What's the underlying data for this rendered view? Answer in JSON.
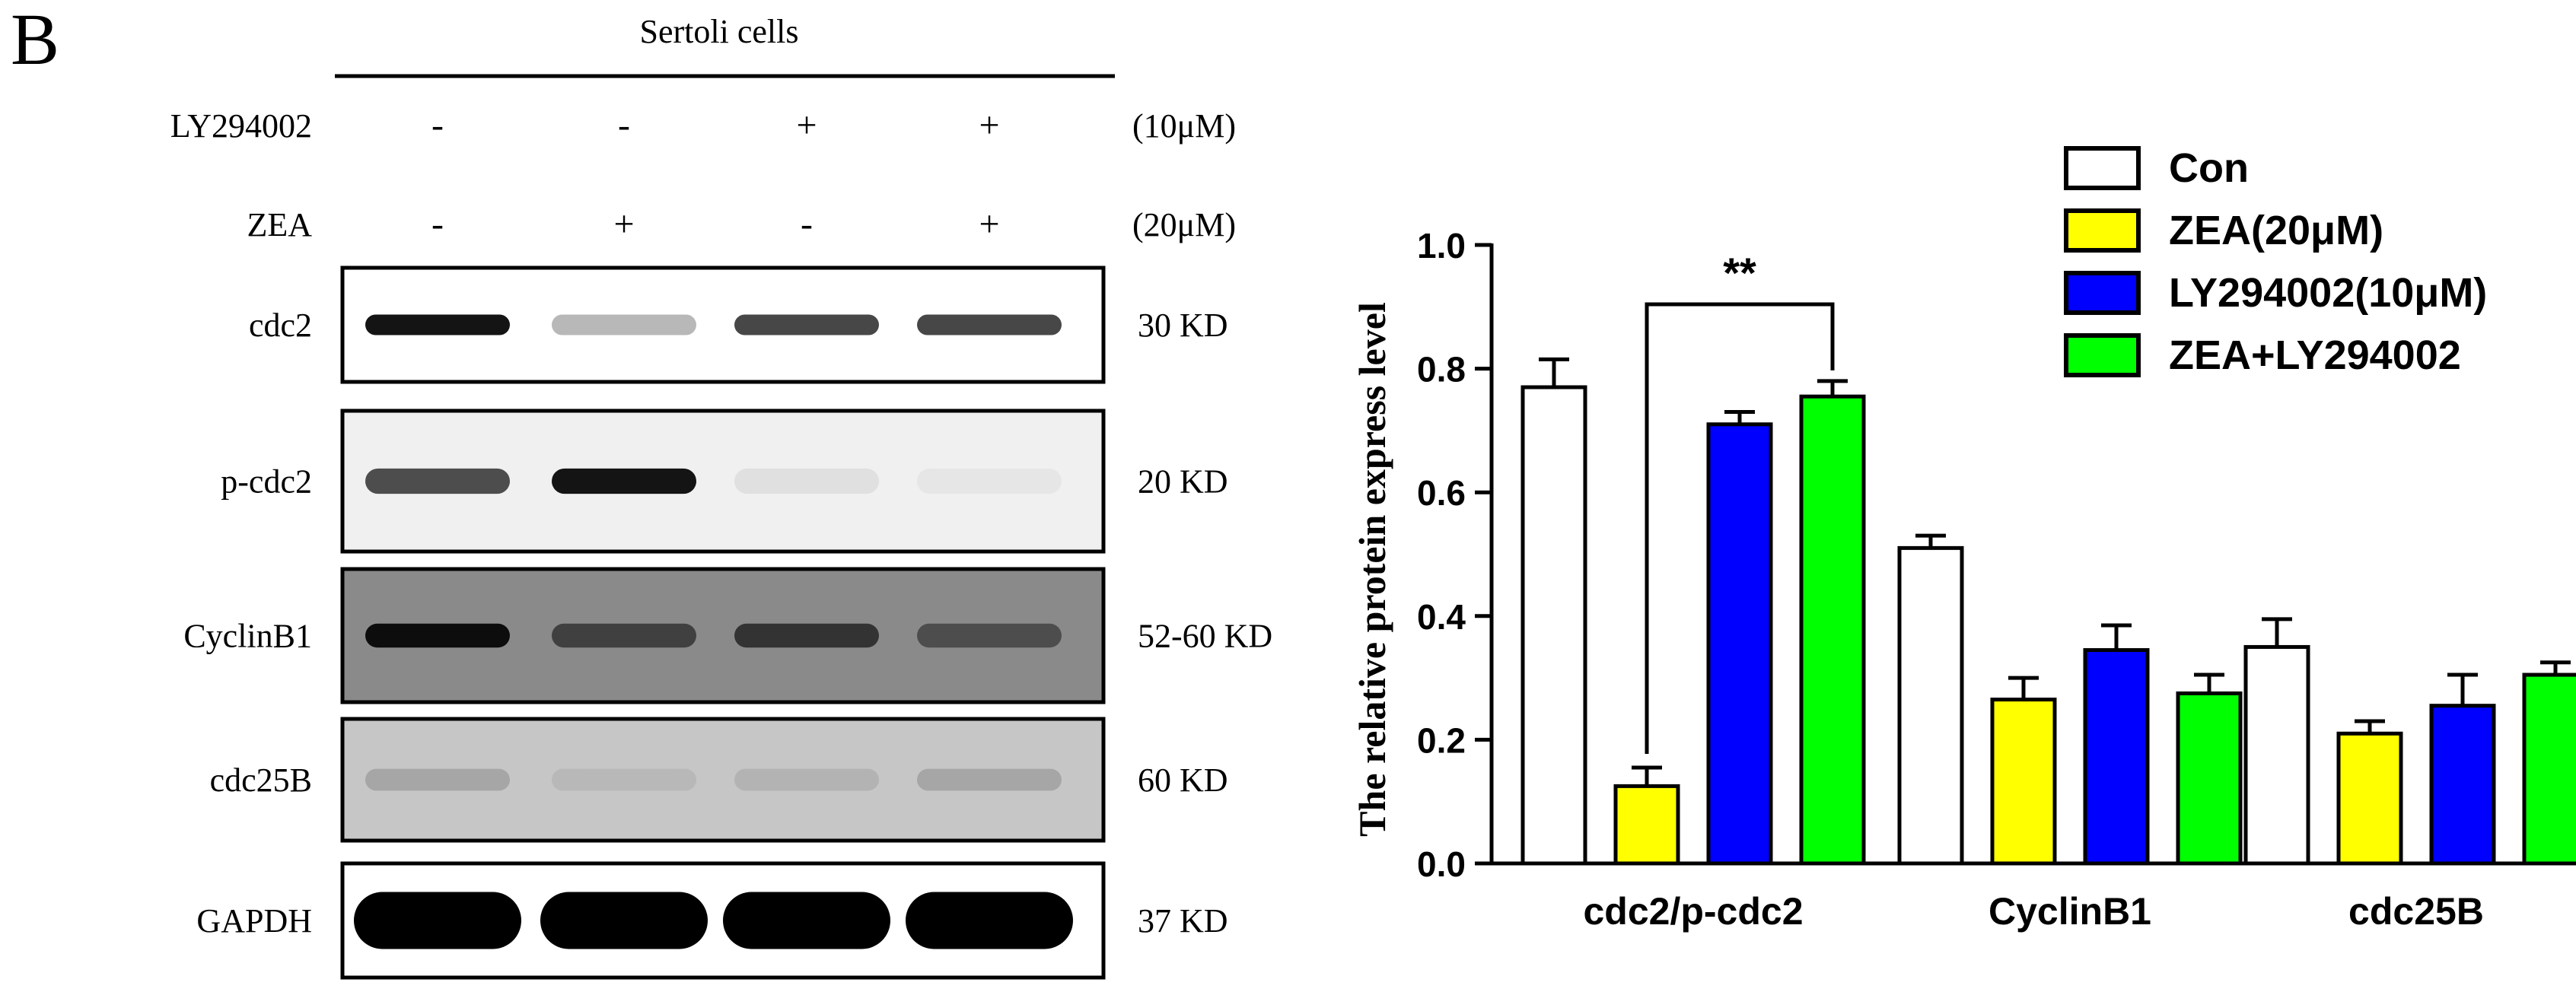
{
  "panel_letter": "B",
  "blot": {
    "header": "Sertoli cells",
    "treatments": [
      {
        "label": "LY294002",
        "signs": [
          "-",
          "-",
          "+",
          "+"
        ],
        "conc": "(10μM)"
      },
      {
        "label": "ZEA",
        "signs": [
          "-",
          "+",
          "-",
          "+"
        ],
        "conc": "(20μM)"
      }
    ],
    "rows": [
      {
        "label": "cdc2",
        "size": "30 KD",
        "intensities": [
          0.92,
          0.28,
          0.72,
          0.72
        ],
        "background": "#ffffff"
      },
      {
        "label": "p-cdc2",
        "size": "20 KD",
        "intensities": [
          0.7,
          0.92,
          0.12,
          0.1
        ],
        "background": "#f0f0f0"
      },
      {
        "label": "CyclinB1",
        "size": "52-60 KD",
        "intensities": [
          0.95,
          0.75,
          0.8,
          0.7
        ],
        "background": "#8a8a8a"
      },
      {
        "label": "cdc25B",
        "size": "60 KD",
        "intensities": [
          0.35,
          0.28,
          0.3,
          0.35
        ],
        "background": "#c6c6c6"
      },
      {
        "label": "GAPDH",
        "size": "37 KD",
        "intensities": [
          1.0,
          1.0,
          1.0,
          1.0
        ],
        "background": "#ffffff"
      }
    ]
  },
  "chart_data": {
    "type": "bar",
    "ylabel": "The relative protein express level",
    "xlabel": "",
    "ylim": [
      0,
      1.0
    ],
    "yticks": [
      "0.0",
      "0.2",
      "0.4",
      "0.6",
      "0.8",
      "1.0"
    ],
    "categories": [
      "cdc2/p-cdc2",
      "CyclinB1",
      "cdc25B"
    ],
    "series": [
      {
        "name": "Con",
        "color": "#ffffff",
        "values": [
          0.77,
          0.51,
          0.35
        ],
        "errors": [
          0.045,
          0.02,
          0.045
        ]
      },
      {
        "name": "ZEA(20μM)",
        "color": "#ffff00",
        "values": [
          0.125,
          0.265,
          0.21
        ],
        "errors": [
          0.03,
          0.035,
          0.02
        ]
      },
      {
        "name": "LY294002(10μM)",
        "color": "#0000ff",
        "values": [
          0.71,
          0.345,
          0.255
        ],
        "errors": [
          0.02,
          0.04,
          0.05
        ]
      },
      {
        "name": "ZEA+LY294002",
        "color": "#00ff00",
        "values": [
          0.755,
          0.275,
          0.305
        ],
        "errors": [
          0.025,
          0.03,
          0.02
        ]
      }
    ],
    "legend_position": "top-right",
    "significance": {
      "label": "**",
      "category_index": 0,
      "from_series": 1,
      "to_series": 3
    }
  }
}
